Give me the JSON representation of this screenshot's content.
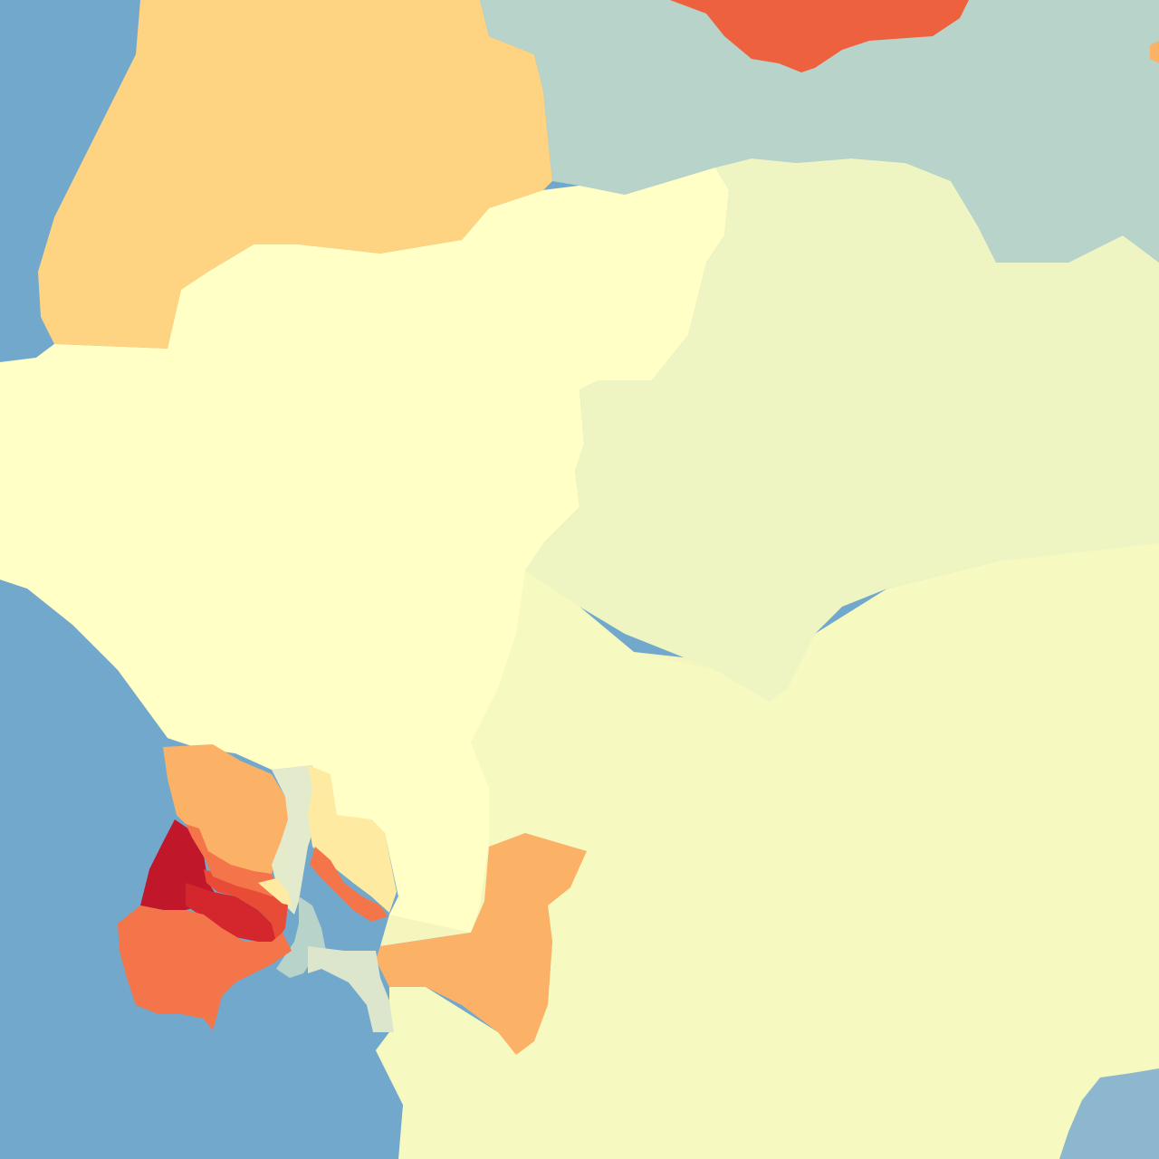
{
  "map": {
    "type": "choropleth",
    "palette": [
      "#72a8cc",
      "#b8d3c9",
      "#dbe6cc",
      "#eef5c2",
      "#f6f9c0",
      "#ffffc6",
      "#feeaa1",
      "#fed382",
      "#fbb267",
      "#f4754a",
      "#ee613f",
      "#e84b36",
      "#d3262d",
      "#c0172a"
    ],
    "water_color": "#72a8cc",
    "regions": [
      {
        "id": "north-west-land",
        "color": "#ffffc6"
      },
      {
        "id": "north-west-district",
        "color": "#fed382"
      },
      {
        "id": "north-central-land",
        "color": "#ffffc6"
      },
      {
        "id": "north-east-district",
        "color": "#b8d3c9"
      },
      {
        "id": "north-peak-district",
        "color": "#ee613f"
      },
      {
        "id": "east-central-district",
        "color": "#eef5c2"
      },
      {
        "id": "south-east-district",
        "color": "#f6f9c0"
      },
      {
        "id": "south-east-bay",
        "color": "#8db7cf"
      },
      {
        "id": "coastal-orange-district",
        "color": "#fbb267"
      },
      {
        "id": "inland-orange-district",
        "color": "#fbb267"
      },
      {
        "id": "river-strip-district",
        "color": "#e4ebcd"
      },
      {
        "id": "river-islet",
        "color": "#b8d3c9"
      },
      {
        "id": "light-orange-district",
        "color": "#feeaa1"
      },
      {
        "id": "south-islet-strip",
        "color": "#dbe6cc"
      },
      {
        "id": "thin-salmon-district",
        "color": "#f4754a"
      },
      {
        "id": "central-core-a",
        "color": "#c0172a"
      },
      {
        "id": "central-core-b",
        "color": "#d3262d"
      },
      {
        "id": "central-core-c",
        "color": "#e84b36"
      },
      {
        "id": "central-core-d",
        "color": "#f4754a"
      },
      {
        "id": "peninsula-district",
        "color": "#f4754a"
      },
      {
        "id": "small-orange-patch",
        "color": "#fbb267"
      }
    ]
  }
}
